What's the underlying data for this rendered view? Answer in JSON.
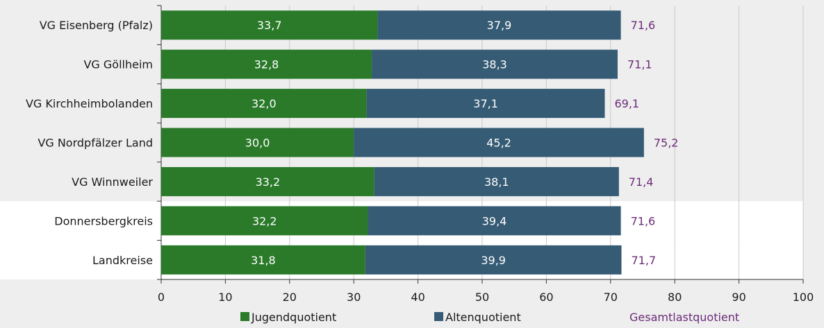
{
  "chart_data": {
    "type": "bar",
    "orientation": "horizontal",
    "stacked": true,
    "categories": [
      "VG Eisenberg (Pfalz)",
      "VG Göllheim",
      "VG Kirchheimbolanden",
      "VG Nordpfälzer Land",
      "VG Winnweiler",
      "Donnersbergkreis",
      "Landkreise"
    ],
    "series": [
      {
        "name": "Jugendquotient",
        "color": "#2a7a2a",
        "values": [
          33.7,
          32.8,
          32.0,
          30.0,
          33.2,
          32.2,
          31.8
        ]
      },
      {
        "name": "Altenquotient",
        "color": "#365b74",
        "values": [
          37.9,
          38.3,
          37.1,
          45.2,
          38.1,
          39.4,
          39.9
        ]
      }
    ],
    "totals_name": "Gesamtlastquotient",
    "totals_color": "#6b2c78",
    "totals": [
      71.6,
      71.1,
      69.1,
      75.2,
      71.4,
      71.6,
      71.7
    ],
    "series_labels": [
      [
        "33,7",
        "32,8",
        "32,0",
        "30,0",
        "33,2",
        "32,2",
        "31,8"
      ],
      [
        "37,9",
        "38,3",
        "37,1",
        "45,2",
        "38,1",
        "39,4",
        "39,9"
      ]
    ],
    "total_labels": [
      "71,6",
      "71,1",
      "69,1",
      "75,2",
      "71,4",
      "71,6",
      "71,7"
    ],
    "xlim": [
      0,
      100
    ],
    "xticks": [
      0,
      10,
      20,
      30,
      40,
      50,
      60,
      70,
      80,
      90,
      100
    ],
    "grid": true,
    "legend": "bottom",
    "highlighted_categories": [
      "Donnersbergkreis",
      "Landkreise"
    ]
  }
}
